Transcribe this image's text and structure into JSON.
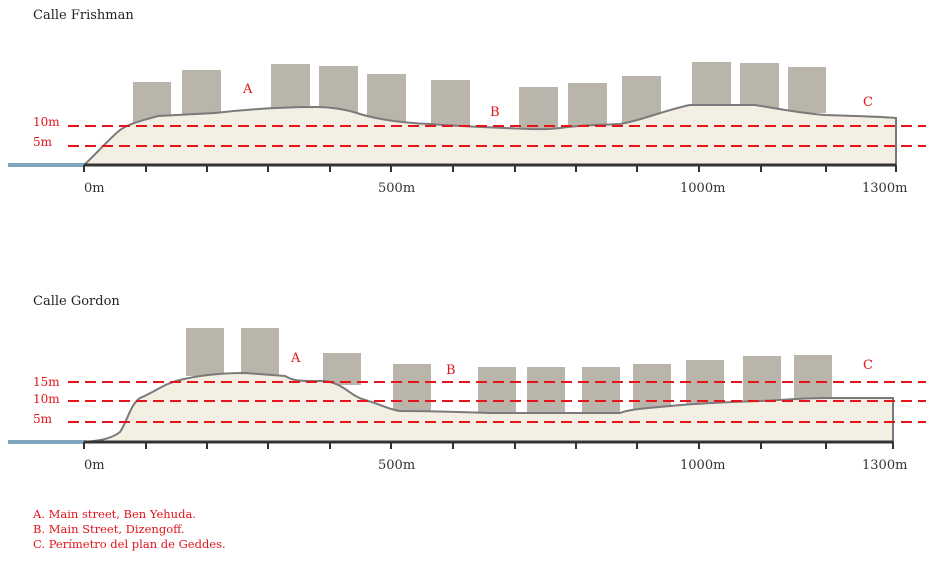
{
  "sections": [
    {
      "title": "Calle Frishman",
      "height_labels": [
        "10m",
        "5m"
      ],
      "point_labels": [
        "A",
        "B",
        "C"
      ],
      "distance_labels": [
        "0m",
        "500m",
        "1000m",
        "1300m"
      ]
    },
    {
      "title": "Calle Gordon",
      "height_labels": [
        "15m",
        "10m",
        "5m"
      ],
      "point_labels": [
        "A",
        "B",
        "C"
      ],
      "distance_labels": [
        "0m",
        "500m",
        "1000m",
        "1300m"
      ]
    }
  ],
  "legend": [
    "A. Main street, Ben Yehuda.",
    "B. Main Street, Dizengoff.",
    "C. Perímetro del plan de Geddes."
  ],
  "colors": {
    "building": "#b9b5ab",
    "ground": "#f3f0e3",
    "terrain_line": "#7a7a7a",
    "level_line": "#e8141b",
    "water": "#7ea7bf",
    "axis": "#333333",
    "label_red": "#e0141b"
  }
}
